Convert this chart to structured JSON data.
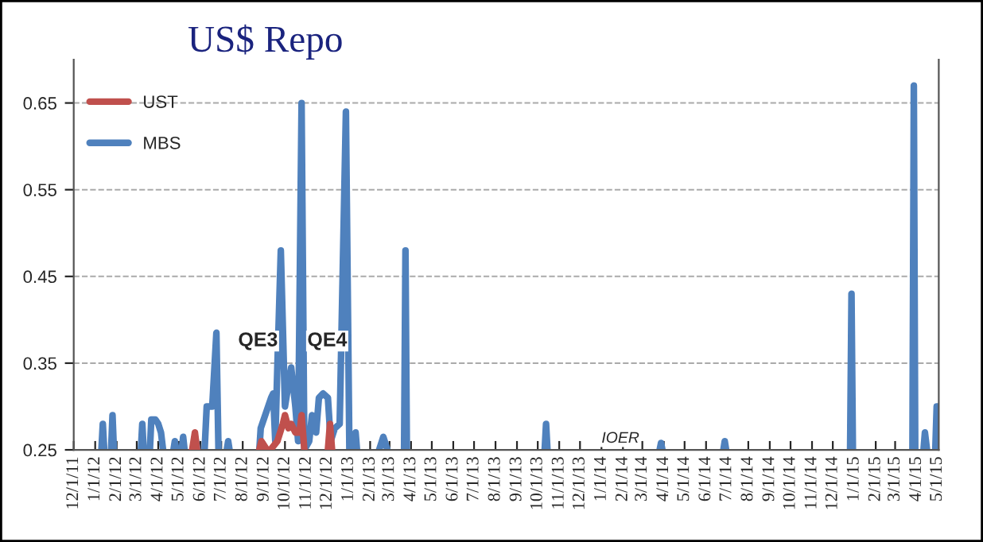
{
  "chart_data": {
    "type": "line",
    "title": "US$ Repo",
    "xlim": [
      "2011-12-01",
      "2015-05-03"
    ],
    "ylim": [
      0.25,
      0.7
    ],
    "yticks": [
      0.25,
      0.35,
      0.45,
      0.55,
      0.65
    ],
    "xticks": [
      {
        "value": "2011-12-01",
        "label": "12/1/11"
      },
      {
        "value": "2012-01-01",
        "label": "1/1/12"
      },
      {
        "value": "2012-02-01",
        "label": "2/1/12"
      },
      {
        "value": "2012-03-01",
        "label": "3/1/12"
      },
      {
        "value": "2012-04-01",
        "label": "4/1/12"
      },
      {
        "value": "2012-05-01",
        "label": "5/1/12"
      },
      {
        "value": "2012-06-01",
        "label": "6/1/12"
      },
      {
        "value": "2012-07-01",
        "label": "7/1/12"
      },
      {
        "value": "2012-08-01",
        "label": "8/1/12"
      },
      {
        "value": "2012-09-01",
        "label": "9/1/12"
      },
      {
        "value": "2012-10-01",
        "label": "10/1/12"
      },
      {
        "value": "2012-11-01",
        "label": "11/1/12"
      },
      {
        "value": "2012-12-01",
        "label": "12/1/12"
      },
      {
        "value": "2013-01-01",
        "label": "1/1/13"
      },
      {
        "value": "2013-02-01",
        "label": "2/1/13"
      },
      {
        "value": "2013-03-01",
        "label": "3/1/13"
      },
      {
        "value": "2013-04-01",
        "label": "4/1/13"
      },
      {
        "value": "2013-05-01",
        "label": "5/1/13"
      },
      {
        "value": "2013-06-01",
        "label": "6/1/13"
      },
      {
        "value": "2013-07-01",
        "label": "7/1/13"
      },
      {
        "value": "2013-08-01",
        "label": "8/1/13"
      },
      {
        "value": "2013-09-01",
        "label": "9/1/13"
      },
      {
        "value": "2013-10-01",
        "label": "10/1/13"
      },
      {
        "value": "2013-11-01",
        "label": "11/1/13"
      },
      {
        "value": "2013-12-01",
        "label": "12/1/13"
      },
      {
        "value": "2014-01-01",
        "label": "1/1/14"
      },
      {
        "value": "2014-02-01",
        "label": "2/1/14"
      },
      {
        "value": "2014-03-01",
        "label": "3/1/14"
      },
      {
        "value": "2014-04-01",
        "label": "4/1/14"
      },
      {
        "value": "2014-05-01",
        "label": "5/1/14"
      },
      {
        "value": "2014-06-01",
        "label": "6/1/14"
      },
      {
        "value": "2014-07-01",
        "label": "7/1/14"
      },
      {
        "value": "2014-08-01",
        "label": "8/1/14"
      },
      {
        "value": "2014-09-01",
        "label": "9/1/14"
      },
      {
        "value": "2014-10-01",
        "label": "10/1/14"
      },
      {
        "value": "2014-11-01",
        "label": "11/1/14"
      },
      {
        "value": "2014-12-01",
        "label": "12/1/14"
      },
      {
        "value": "2015-01-01",
        "label": "1/1/15"
      },
      {
        "value": "2015-02-01",
        "label": "2/1/15"
      },
      {
        "value": "2015-03-01",
        "label": "3/1/15"
      },
      {
        "value": "2015-04-01",
        "label": "4/1/15"
      },
      {
        "value": "2015-05-01",
        "label": "5/1/15"
      }
    ],
    "grid": "y",
    "legend": "top left",
    "marker": "none",
    "line_style": "solid",
    "series": [
      {
        "name": "UST",
        "color": "#c0504d",
        "x": [
          "2012-05-20",
          "2012-05-24",
          "2012-05-27",
          "2012-07-01",
          "2012-08-25",
          "2012-08-28",
          "2012-09-05",
          "2012-09-08",
          "2012-09-10",
          "2012-09-20",
          "2012-09-28",
          "2012-10-01",
          "2012-10-06",
          "2012-10-10",
          "2012-10-16",
          "2012-10-22",
          "2012-10-25",
          "2012-10-29",
          "2012-11-15",
          "2012-12-02",
          "2012-12-05",
          "2012-12-08"
        ],
        "values": [
          0.25,
          0.27,
          0.25,
          null,
          0.25,
          0.26,
          0.25,
          null,
          0.25,
          0.26,
          0.28,
          0.29,
          0.275,
          0.28,
          0.27,
          0.27,
          0.29,
          0.25,
          null,
          0.25,
          0.28,
          0.25
        ]
      },
      {
        "name": "MBS",
        "color": "#4f81bd",
        "x": [
          "2012-01-10",
          "2012-01-12",
          "2012-01-14",
          "2012-01-18",
          "2012-01-24",
          "2012-01-26",
          "2012-01-28",
          "2012-02-15",
          "2012-03-07",
          "2012-03-09",
          "2012-03-11",
          "2012-03-15",
          "2012-03-20",
          "2012-03-22",
          "2012-03-28",
          "2012-04-01",
          "2012-04-05",
          "2012-04-08",
          "2012-04-15",
          "2012-04-23",
          "2012-04-25",
          "2012-04-27",
          "2012-05-01",
          "2012-05-05",
          "2012-05-07",
          "2012-05-09",
          "2012-05-15",
          "2012-05-22",
          "2012-05-24",
          "2012-05-28",
          "2012-06-02",
          "2012-06-07",
          "2012-06-10",
          "2012-06-18",
          "2012-06-24",
          "2012-06-27",
          "2012-07-03",
          "2012-07-09",
          "2012-07-11",
          "2012-07-13",
          "2012-08-10",
          "2012-08-25",
          "2012-08-27",
          "2012-09-11",
          "2012-09-14",
          "2012-09-17",
          "2012-09-20",
          "2012-09-25",
          "2012-10-01",
          "2012-10-10",
          "2012-10-16",
          "2012-10-20",
          "2012-10-25",
          "2012-10-29",
          "2012-11-05",
          "2012-11-09",
          "2012-11-15",
          "2012-11-19",
          "2012-11-25",
          "2012-12-02",
          "2012-12-06",
          "2012-12-12",
          "2012-12-19",
          "2012-12-28",
          "2013-01-02",
          "2013-01-05",
          "2013-01-09",
          "2013-01-11",
          "2013-01-13",
          "2013-02-01",
          "2013-02-14",
          "2013-02-20",
          "2013-02-26",
          "2013-03-10",
          "2013-03-22",
          "2013-03-24",
          "2013-03-26",
          "2013-07-01",
          "2013-10-11",
          "2013-10-13",
          "2013-10-15",
          "2014-01-01",
          "2014-03-26",
          "2014-03-28",
          "2014-03-30",
          "2014-05-01",
          "2014-06-26",
          "2014-06-28",
          "2014-06-30",
          "2014-10-01",
          "2014-12-26",
          "2014-12-28",
          "2014-12-30",
          "2015-02-15",
          "2015-03-26",
          "2015-03-28",
          "2015-03-30",
          "2015-04-05",
          "2015-04-11",
          "2015-04-13",
          "2015-04-16",
          "2015-04-22",
          "2015-04-28",
          "2015-04-30",
          "2015-05-02"
        ],
        "values": [
          0.25,
          0.28,
          0.25,
          null,
          0.25,
          0.29,
          0.25,
          null,
          0.25,
          0.28,
          0.25,
          null,
          0.25,
          0.285,
          0.285,
          0.28,
          0.27,
          0.25,
          null,
          0.25,
          0.26,
          0.25,
          null,
          0.25,
          0.265,
          0.25,
          null,
          0.25,
          0.265,
          0.25,
          null,
          0.25,
          0.3,
          0.3,
          0.385,
          0.25,
          null,
          0.25,
          0.26,
          0.25,
          null,
          0.25,
          0.275,
          0.31,
          0.315,
          0.26,
          0.345,
          0.48,
          0.3,
          0.345,
          0.3,
          0.26,
          0.65,
          0.25,
          0.26,
          0.29,
          0.27,
          0.31,
          0.315,
          0.31,
          0.26,
          0.275,
          0.28,
          0.64,
          0.25,
          null,
          0.25,
          0.27,
          0.25,
          null,
          0.25,
          0.265,
          0.25,
          null,
          0.25,
          0.48,
          0.25,
          null,
          0.25,
          0.28,
          0.25,
          null,
          0.25,
          0.258,
          0.25,
          null,
          0.25,
          0.26,
          0.25,
          null,
          0.25,
          0.43,
          0.25,
          null,
          0.25,
          0.67,
          0.25,
          null,
          0.25,
          0.27,
          0.25,
          null,
          0.25,
          0.3,
          0.3
        ]
      }
    ],
    "annotations": [
      "QE3",
      "QE4",
      "IOER"
    ]
  }
}
